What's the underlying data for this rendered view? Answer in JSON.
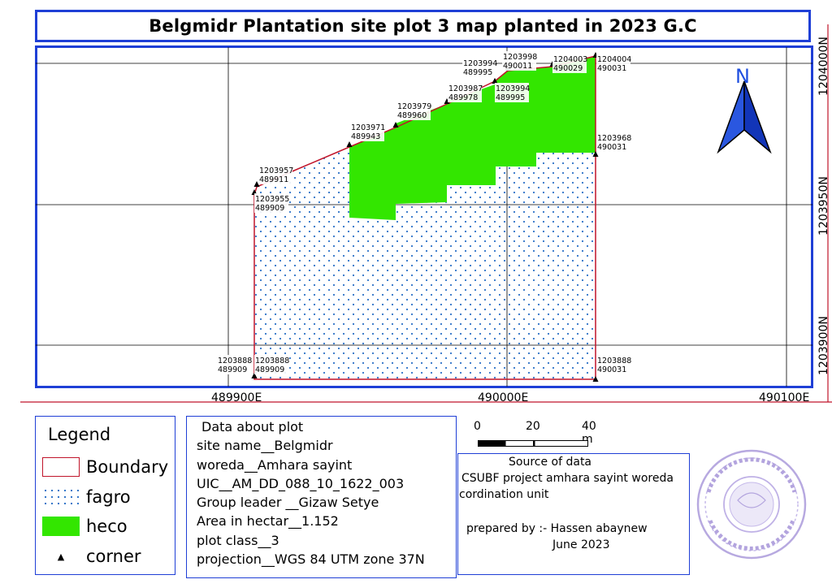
{
  "title": "Belgmidr Plantation site plot 3 map planted in 2023 G.C",
  "map": {
    "x_ticks": [
      "489900E",
      "490000E",
      "490100E"
    ],
    "y_ticks": [
      "1204000N",
      "1203950N",
      "1203900N"
    ],
    "north_label": "N",
    "corners": [
      {
        "n": "1203888",
        "e": "489909"
      },
      {
        "n": "1203888",
        "e": "489909"
      },
      {
        "n": "1203955",
        "e": "489909"
      },
      {
        "n": "1203957",
        "e": "489911"
      },
      {
        "n": "1203971",
        "e": "489943"
      },
      {
        "n": "1203979",
        "e": "489960"
      },
      {
        "n": "1203987",
        "e": "489978"
      },
      {
        "n": "1203994",
        "e": "489995"
      },
      {
        "n": "1203994",
        "e": "489995"
      },
      {
        "n": "1203998",
        "e": "490011"
      },
      {
        "n": "1204003",
        "e": "490029"
      },
      {
        "n": "1204004",
        "e": "490031"
      },
      {
        "n": "1203968",
        "e": "490031"
      },
      {
        "n": "1203888",
        "e": "490031"
      }
    ],
    "colors": {
      "boundary": "#c0142a",
      "heco": "#33e600",
      "fagro_dots": "#2d72c7",
      "frame": "#1f3fd6"
    }
  },
  "legend": {
    "title": "Legend",
    "items": [
      {
        "label": "Boundary"
      },
      {
        "label": "fagro"
      },
      {
        "label": "heco"
      },
      {
        "label": "corner"
      }
    ]
  },
  "plot_info": {
    "heading": "Data about plot",
    "lines": [
      "site name__Belgmidr",
      "woreda__Amhara sayint",
      "UIC__AM_DD_088_10_1622_003",
      "Group leader __Gizaw Setye",
      "Area in hectar__1.152",
      "plot class__3",
      "projection__WGS 84 UTM zone 37N"
    ]
  },
  "scale_bar": {
    "labels": [
      "0",
      "20",
      "40 m"
    ]
  },
  "source": {
    "lines": [
      "Source of data",
      "CSUBF project amhara sayint woreda",
      "cordination unit",
      "prepared by :- Hassen abaynew",
      "June 2023"
    ]
  }
}
